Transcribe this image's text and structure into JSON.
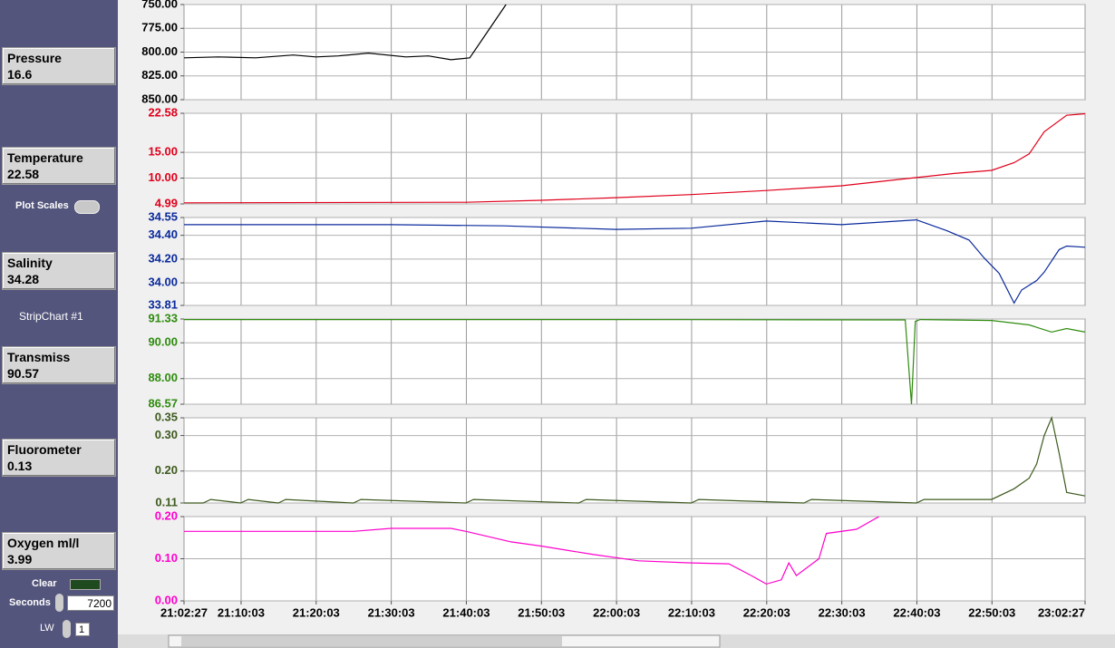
{
  "panel": {
    "readouts": [
      {
        "label": "Pressure",
        "value": "16.6"
      },
      {
        "label": "Temperature",
        "value": "22.58"
      },
      {
        "label": "Salinity",
        "value": "34.28"
      },
      {
        "label": "Transmiss",
        "value": "90.57"
      },
      {
        "label": "Fluorometer",
        "value": "0.13"
      },
      {
        "label": "Oxygen ml/l",
        "value": "3.99"
      }
    ],
    "plot_scales": "Plot Scales",
    "stripchart": "StripChart #1",
    "clear": "Clear",
    "seconds_label": "Seconds",
    "seconds_value": "7200",
    "lw_label": "LW",
    "lw_value": "1"
  },
  "chart_data": [
    {
      "type": "line",
      "color": "#000000",
      "x": [
        "21:02:27",
        "21:07:00",
        "21:12:00",
        "21:17:00",
        "21:20:00",
        "21:23:00",
        "21:27:00",
        "21:32:00",
        "21:35:00",
        "21:38:00",
        "21:40:30",
        "21:43:00",
        "21:45:20"
      ],
      "values": [
        806,
        805,
        806,
        803,
        805,
        804,
        801,
        805,
        804,
        808,
        806,
        777,
        750
      ],
      "ylim": [
        850,
        750
      ],
      "yticks": [
        {
          "value": 750,
          "label": "750.00"
        },
        {
          "value": 775,
          "label": "775.00"
        },
        {
          "value": 800,
          "label": "800.00"
        },
        {
          "value": 825,
          "label": "825.00"
        },
        {
          "value": 850,
          "label": "850.00"
        }
      ],
      "grid": true
    },
    {
      "type": "line",
      "color": "#e0001b",
      "x": [
        "21:02:27",
        "21:40:00",
        "21:50:00",
        "22:00:00",
        "22:10:00",
        "22:20:00",
        "22:30:00",
        "22:40:00",
        "22:45:00",
        "22:50:00",
        "22:53:00",
        "22:55:00",
        "22:57:00",
        "23:00:00",
        "23:02:27"
      ],
      "values": [
        5.2,
        5.3,
        5.7,
        6.2,
        6.8,
        7.6,
        8.5,
        10.1,
        10.9,
        11.5,
        13.0,
        14.7,
        19.0,
        22.2,
        22.5
      ],
      "ylim": [
        4.99,
        22.58
      ],
      "yticks": [
        22.58,
        {
          "value": 15,
          "label": "15.00"
        },
        {
          "value": 10,
          "label": "10.00"
        },
        4.99
      ],
      "grid": true
    },
    {
      "type": "line",
      "color": "#0a2a9c",
      "x": [
        "21:02:27",
        "21:30:00",
        "21:45:00",
        "22:00:00",
        "22:10:00",
        "22:20:00",
        "22:30:00",
        "22:40:00",
        "22:44:00",
        "22:47:00",
        "22:49:00",
        "22:51:00",
        "22:53:00",
        "22:54:00",
        "22:56:00",
        "22:57:00",
        "22:59:00",
        "23:00:00",
        "23:02:27"
      ],
      "values": [
        34.49,
        34.49,
        34.48,
        34.45,
        34.46,
        34.52,
        34.49,
        34.53,
        34.44,
        34.36,
        34.21,
        34.08,
        33.83,
        33.94,
        34.02,
        34.09,
        34.28,
        34.31,
        34.3
      ],
      "ylim": [
        33.81,
        34.55
      ],
      "yticks": [
        34.55,
        {
          "value": 34.4,
          "label": "34.40"
        },
        {
          "value": 34.2,
          "label": "34.20"
        },
        {
          "value": 34,
          "label": "34.00"
        },
        33.81
      ],
      "grid": true
    },
    {
      "type": "line",
      "color": "#2e8b0e",
      "x": [
        "21:02:27",
        "22:00:00",
        "22:38:30",
        "22:39:20",
        "22:39:50",
        "22:40:30",
        "22:50:00",
        "22:55:00",
        "22:58:00",
        "23:00:00",
        "23:02:27"
      ],
      "values": [
        91.3,
        91.3,
        91.28,
        86.57,
        91.2,
        91.3,
        91.25,
        91.0,
        90.6,
        90.8,
        90.6
      ],
      "ylim": [
        86.57,
        91.33
      ],
      "yticks": [
        91.33,
        {
          "value": 90,
          "label": "90.00"
        },
        {
          "value": 88,
          "label": "88.00"
        },
        86.57
      ],
      "grid": true
    },
    {
      "type": "line",
      "color": "#3d5a1e",
      "x": [
        "21:02:27",
        "21:05:00",
        "21:06:00",
        "21:10:00",
        "21:11:00",
        "21:15:00",
        "21:16:00",
        "21:25:00",
        "21:26:00",
        "21:40:00",
        "21:41:00",
        "21:55:00",
        "21:56:00",
        "22:10:00",
        "22:11:00",
        "22:25:00",
        "22:26:00",
        "22:40:00",
        "22:41:00",
        "22:50:00",
        "22:53:00",
        "22:55:00",
        "22:56:00",
        "22:57:00",
        "22:58:00",
        "22:59:00",
        "23:00:00",
        "23:02:27"
      ],
      "values": [
        0.11,
        0.11,
        0.12,
        0.11,
        0.12,
        0.11,
        0.12,
        0.11,
        0.12,
        0.11,
        0.12,
        0.11,
        0.12,
        0.11,
        0.12,
        0.11,
        0.12,
        0.11,
        0.12,
        0.12,
        0.15,
        0.18,
        0.22,
        0.3,
        0.35,
        0.25,
        0.14,
        0.13
      ],
      "ylim": [
        0.11,
        0.35
      ],
      "yticks": [
        0.35,
        {
          "value": 0.3,
          "label": "0.30"
        },
        {
          "value": 0.2,
          "label": "0.20"
        },
        0.11
      ],
      "grid": true
    },
    {
      "type": "line",
      "color": "#ff00cc",
      "x": [
        "21:02:27",
        "21:25:00",
        "21:30:00",
        "21:38:00",
        "21:40:00",
        "21:46:00",
        "21:50:00",
        "21:57:00",
        "22:03:00",
        "22:10:00",
        "22:15:00",
        "22:18:00",
        "22:20:00",
        "22:22:00",
        "22:23:00",
        "22:24:00",
        "22:27:00",
        "22:28:00",
        "22:32:00",
        "22:35:00"
      ],
      "values": [
        0.165,
        0.165,
        0.172,
        0.172,
        0.165,
        0.14,
        0.13,
        0.11,
        0.095,
        0.09,
        0.088,
        0.06,
        0.04,
        0.05,
        0.09,
        0.06,
        0.1,
        0.16,
        0.17,
        0.2
      ],
      "ylim": [
        0,
        0.2
      ],
      "yticks": [
        {
          "value": 0.2,
          "label": "0.20"
        },
        {
          "value": 0.1,
          "label": "0.10"
        },
        {
          "value": 0,
          "label": "0.00"
        }
      ],
      "xlim": [
        "21:02:27",
        "23:02:27"
      ],
      "xticks": [
        "21:02:27",
        "21:10:03",
        "21:20:03",
        "21:30:03",
        "21:40:03",
        "21:50:03",
        "22:00:03",
        "22:10:03",
        "22:20:03",
        "22:30:03",
        "22:40:03",
        "22:50:03",
        "23:02:27"
      ],
      "grid": true
    }
  ]
}
